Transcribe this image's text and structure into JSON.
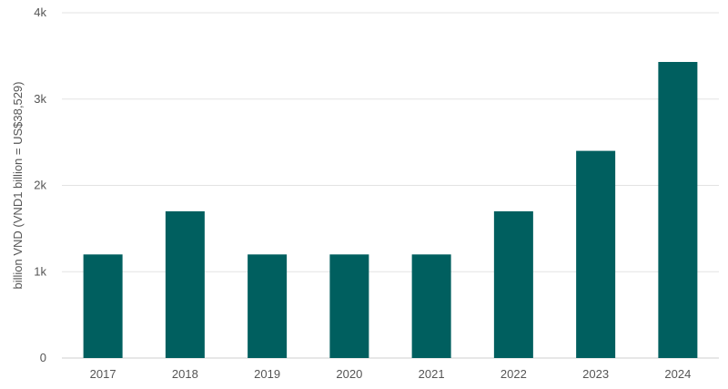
{
  "chart_data": {
    "type": "bar",
    "title": "",
    "xlabel": "",
    "ylabel": "billion VND (VND1 billion = US$38,529)",
    "categories": [
      "2017",
      "2018",
      "2019",
      "2020",
      "2021",
      "2022",
      "2023",
      "2024"
    ],
    "values": [
      1200,
      1700,
      1200,
      1200,
      1200,
      1700,
      2400,
      3430
    ],
    "ylim": [
      0,
      4000
    ],
    "yticks": [
      0,
      1000,
      2000,
      3000,
      4000
    ],
    "ytick_labels": [
      "0",
      "1k",
      "2k",
      "3k",
      "4k"
    ],
    "grid": true,
    "legend": "none",
    "bar_color": "#005f5f"
  }
}
